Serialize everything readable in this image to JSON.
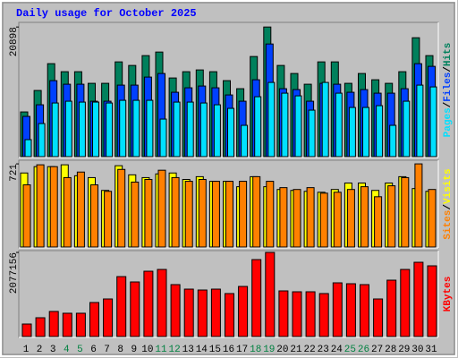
{
  "legend_separator": "/",
  "chart_data": [
    {
      "type": "bar",
      "title": "Daily usage for October 2025",
      "ylim": [
        0,
        21500
      ],
      "yticks": [
        20898
      ],
      "series": [
        {
          "name": "Hits",
          "color": "#00805c",
          "values": [
            7206,
            10665,
            14988,
            13691,
            13691,
            11818,
            11818,
            15276,
            14700,
            16285,
            16861,
            12682,
            13691,
            13979,
            13691,
            12250,
            10953,
            16141,
            20898,
            14700,
            13403,
            11674,
            15276,
            15276,
            11818,
            13403,
            12394,
            11818,
            13691,
            19168,
            16285
          ]
        },
        {
          "name": "Files",
          "color": "#0040ff",
          "values": [
            6485,
            8359,
            12250,
            11674,
            11674,
            8935,
            8935,
            11530,
            11530,
            12826,
            13403,
            10377,
            11097,
            11385,
            11097,
            9944,
            8935,
            12394,
            18159,
            10953,
            10809,
            8935,
            11818,
            11674,
            10377,
            10809,
            10232,
            10232,
            10953,
            14988,
            14556
          ]
        },
        {
          "name": "Pages",
          "color": "#00e0ff",
          "values": [
            2738,
            5332,
            8647,
            8935,
            8791,
            8791,
            8647,
            9079,
            9079,
            9079,
            6053,
            8791,
            8791,
            8647,
            8359,
            7782,
            5044,
            9656,
            11962,
            10232,
            9800,
            7494,
            11962,
            10232,
            7926,
            7926,
            8215,
            5044,
            8935,
            11530,
            11241
          ]
        }
      ]
    },
    {
      "type": "bar",
      "ylim": [
        0,
        745
      ],
      "yticks": [
        721
      ],
      "series": [
        {
          "name": "Visits",
          "color": "#ffff00",
          "values": [
            642,
            697,
            697,
            713,
            618,
            602,
            491,
            705,
            626,
            602,
            634,
            642,
            586,
            610,
            570,
            570,
            523,
            610,
            523,
            499,
            491,
            483,
            475,
            499,
            555,
            555,
            491,
            555,
            610,
            507,
            483
          ]
        },
        {
          "name": "Sites",
          "color": "#ff8000",
          "values": [
            539,
            713,
            697,
            602,
            650,
            539,
            483,
            673,
            563,
            586,
            666,
            602,
            570,
            586,
            570,
            570,
            570,
            610,
            570,
            515,
            499,
            515,
            467,
            475,
            499,
            523,
            436,
            531,
            602,
            721,
            499
          ]
        }
      ]
    },
    {
      "type": "bar",
      "ylim": [
        0,
        2100000
      ],
      "yticks": [
        2077156
      ],
      "categories": [
        "1",
        "2",
        "3",
        "4",
        "5",
        "6",
        "7",
        "8",
        "9",
        "10",
        "11",
        "12",
        "13",
        "14",
        "15",
        "16",
        "17",
        "18",
        "19",
        "20",
        "21",
        "22",
        "23",
        "24",
        "25",
        "26",
        "27",
        "28",
        "29",
        "30",
        "31"
      ],
      "category_colors": [
        "#000000",
        "#000000",
        "#000000",
        "#008040",
        "#008040",
        "#000000",
        "#000000",
        "#000000",
        "#000000",
        "#000000",
        "#008040",
        "#008040",
        "#000000",
        "#000000",
        "#000000",
        "#000000",
        "#000000",
        "#008040",
        "#008040",
        "#000000",
        "#000000",
        "#000000",
        "#000000",
        "#000000",
        "#008040",
        "#008040",
        "#000000",
        "#000000",
        "#000000",
        "#000000",
        "#000000"
      ],
      "series": [
        {
          "name": "KBytes",
          "color": "#ff0000",
          "values": [
            309000,
            464000,
            619000,
            575000,
            575000,
            840000,
            928000,
            1480000,
            1348000,
            1613000,
            1657000,
            1282000,
            1171000,
            1149000,
            1171000,
            1061000,
            1237000,
            1900000,
            2077156,
            1127000,
            1105000,
            1105000,
            1061000,
            1326000,
            1304000,
            1282000,
            928000,
            1392000,
            1657000,
            1834000,
            1746000
          ]
        }
      ]
    }
  ]
}
